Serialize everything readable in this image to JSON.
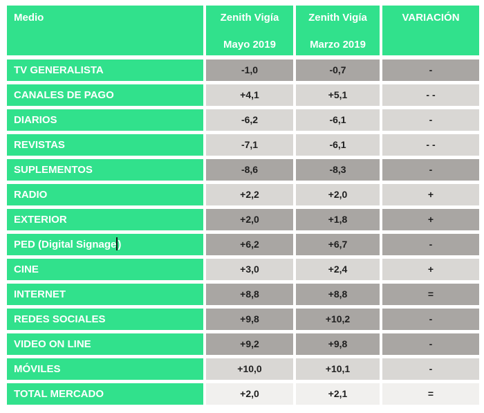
{
  "colors": {
    "header_green": "#31e18c",
    "row_dark_gray": "#a9a6a3",
    "row_light_gray": "#d9d7d4",
    "row_total_gray": "#f1f0ee",
    "header_text": "#ffffff",
    "value_text": "#1f1f1f"
  },
  "chart_data": {
    "type": "table",
    "columns": [
      {
        "line1": "Medio",
        "line2": ""
      },
      {
        "line1": "Zenith Vigía",
        "line2": "Mayo 2019"
      },
      {
        "line1": "Zenith Vigía",
        "line2": "Marzo 2019"
      },
      {
        "line1": "VARIACIÓN",
        "line2": ""
      }
    ],
    "categories": [
      "TV GENERALISTA",
      "CANALES DE PAGO",
      "DIARIOS",
      "REVISTAS",
      "SUPLEMENTOS",
      "RADIO",
      "EXTERIOR",
      "PED (Digital Signage)",
      "CINE",
      "INTERNET",
      "REDES SOCIALES",
      "VIDEO ON LINE",
      "MÓVILES",
      "TOTAL MERCADO"
    ],
    "series": [
      {
        "name": "Zenith Vigía Mayo 2019",
        "values": [
          -1.0,
          4.1,
          -6.2,
          -7.1,
          -8.6,
          2.2,
          2.0,
          6.2,
          3.0,
          8.8,
          9.8,
          9.2,
          10.0,
          2.0
        ]
      },
      {
        "name": "Zenith Vigía Marzo 2019",
        "values": [
          -0.7,
          5.1,
          -6.1,
          -6.1,
          -8.3,
          2.0,
          1.8,
          6.7,
          2.4,
          8.8,
          10.2,
          9.8,
          10.1,
          2.1
        ]
      }
    ],
    "rows": [
      {
        "medio": "TV GENERALISTA",
        "mayo": "-1,0",
        "marzo": "-0,7",
        "variacion": "-",
        "shade": "dark"
      },
      {
        "medio": "CANALES DE PAGO",
        "mayo": "+4,1",
        "marzo": "+5,1",
        "variacion": "- -",
        "shade": "light"
      },
      {
        "medio": "DIARIOS",
        "mayo": "-6,2",
        "marzo": "-6,1",
        "variacion": "-",
        "shade": "light"
      },
      {
        "medio": "REVISTAS",
        "mayo": "-7,1",
        "marzo": "-6,1",
        "variacion": "- -",
        "shade": "light"
      },
      {
        "medio": "SUPLEMENTOS",
        "mayo": "-8,6",
        "marzo": "-8,3",
        "variacion": "-",
        "shade": "dark"
      },
      {
        "medio": "RADIO",
        "mayo": "+2,2",
        "marzo": "+2,0",
        "variacion": "+",
        "shade": "light"
      },
      {
        "medio": "EXTERIOR",
        "mayo": "+2,0",
        "marzo": "+1,8",
        "variacion": "+",
        "shade": "dark"
      },
      {
        "medio": "PED (Digital Signage)",
        "medio_pre": "PED (Digital Signage",
        "medio_close": ")",
        "mayo": "+6,2",
        "marzo": "+6,7",
        "variacion": "-",
        "shade": "dark"
      },
      {
        "medio": "CINE",
        "mayo": "+3,0",
        "marzo": "+2,4",
        "variacion": "+",
        "shade": "light"
      },
      {
        "medio": "INTERNET",
        "mayo": "+8,8",
        "marzo": "+8,8",
        "variacion": "=",
        "shade": "dark"
      },
      {
        "medio": "REDES SOCIALES",
        "mayo": "+9,8",
        "marzo": "+10,2",
        "variacion": "-",
        "shade": "dark"
      },
      {
        "medio": "VIDEO ON LINE",
        "mayo": "+9,2",
        "marzo": "+9,8",
        "variacion": "-",
        "shade": "dark"
      },
      {
        "medio": "MÓVILES",
        "mayo": "+10,0",
        "marzo": "+10,1",
        "variacion": "-",
        "shade": "light"
      },
      {
        "medio": "TOTAL MERCADO",
        "mayo": "+2,0",
        "marzo": "+2,1",
        "variacion": "=",
        "shade": "total"
      }
    ]
  }
}
